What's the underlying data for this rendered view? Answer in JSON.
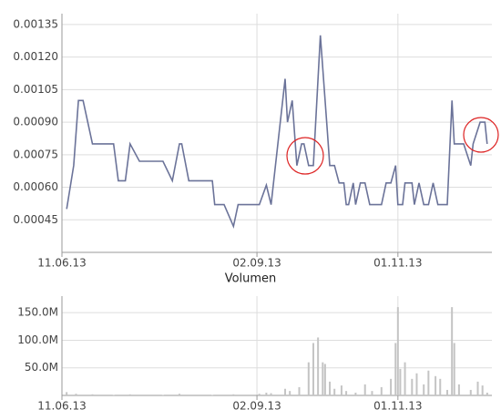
{
  "chart_data": [
    {
      "type": "line",
      "color": "#6b7399",
      "grid": true,
      "xlim": [
        "11.06.13",
        "11.12.13"
      ],
      "xticks": [
        "11.06.13",
        "02.09.13",
        "01.11.13"
      ],
      "ylim": [
        0.0003,
        0.0014
      ],
      "yticks": [
        0.00045,
        {
          "value": 0.0006,
          "label": "0.00060"
        },
        0.00075,
        {
          "value": 0.0009,
          "label": "0.00090"
        },
        0.00105,
        {
          "value": 0.0012,
          "label": "0.00120"
        },
        0.00135
      ],
      "x": [
        "13.06.13",
        "16.06.13",
        "18.06.13",
        "20.06.13",
        "24.06.13",
        "01.07.13",
        "03.07.13",
        "05.07.13",
        "08.07.13",
        "10.07.13",
        "14.07.13",
        "24.07.13",
        "28.07.13",
        "31.07.13",
        "01.08.13",
        "04.08.13",
        "14.08.13",
        "15.08.13",
        "19.08.13",
        "23.08.13",
        "25.08.13",
        "03.09.13",
        "06.09.13",
        "08.09.13",
        "14.09.13",
        "15.09.13",
        "17.09.13",
        "19.09.13",
        "21.09.13",
        "22.09.13",
        "24.09.13",
        "26.09.13",
        "29.09.13",
        "02.10.13",
        "03.10.13",
        "05.10.13",
        "07.10.13",
        "09.10.13",
        "10.10.13",
        "11.10.13",
        "13.10.13",
        "14.10.13",
        "16.10.13",
        "18.10.13",
        "20.10.13",
        "25.10.13",
        "27.10.13",
        "29.10.13",
        "31.10.13",
        "01.11.13",
        "03.11.13",
        "04.11.13",
        "07.11.13",
        "08.11.13",
        "10.11.13",
        "12.11.13",
        "14.11.13",
        "16.11.13",
        "18.11.13",
        "20.11.13",
        "22.11.13",
        "24.11.13",
        "25.11.13",
        "29.11.13",
        "02.12.13",
        "03.12.13",
        "06.12.13",
        "08.12.13",
        "09.12.13"
      ],
      "values": [
        0.0005,
        0.0007,
        0.001,
        0.001,
        0.0008,
        0.0008,
        0.0008,
        0.00063,
        0.00063,
        0.0008,
        0.00072,
        0.00072,
        0.00063,
        0.0008,
        0.0008,
        0.00063,
        0.00063,
        0.00052,
        0.00052,
        0.00042,
        0.00052,
        0.00052,
        0.00061,
        0.00052,
        0.0011,
        0.0009,
        0.001,
        0.0007,
        0.0008,
        0.0008,
        0.0007,
        0.0007,
        0.0013,
        0.00085,
        0.0007,
        0.0007,
        0.00062,
        0.00062,
        0.00052,
        0.00052,
        0.00062,
        0.00052,
        0.00062,
        0.00062,
        0.00052,
        0.00052,
        0.00062,
        0.00062,
        0.0007,
        0.00052,
        0.00052,
        0.00062,
        0.00062,
        0.00052,
        0.00062,
        0.00052,
        0.00052,
        0.00062,
        0.00052,
        0.00052,
        0.00052,
        0.001,
        0.0008,
        0.0008,
        0.0007,
        0.0008,
        0.0009,
        0.0009,
        0.0008
      ]
    },
    {
      "type": "bar",
      "title": "Volumen",
      "color": "#c4c4c4",
      "grid": true,
      "xlim": [
        "11.06.13",
        "11.12.13"
      ],
      "xticks": [
        "11.06.13",
        "02.09.13",
        "01.11.13"
      ],
      "ylim": [
        0,
        180000000
      ],
      "yticks": [
        {
          "value": 50000000,
          "label": "50.0M"
        },
        {
          "value": 100000000,
          "label": "100.0M"
        },
        {
          "value": 150000000,
          "label": "150.0M"
        }
      ],
      "x": [
        "13.06.13",
        "17.06.13",
        "24.06.13",
        "03.07.13",
        "10.07.13",
        "24.07.13",
        "31.07.13",
        "14.08.13",
        "23.08.13",
        "03.09.13",
        "06.09.13",
        "08.09.13",
        "14.09.13",
        "16.09.13",
        "20.09.13",
        "24.09.13",
        "26.09.13",
        "28.09.13",
        "30.09.13",
        "01.10.13",
        "03.10.13",
        "05.10.13",
        "08.10.13",
        "10.10.13",
        "14.10.13",
        "18.10.13",
        "21.10.13",
        "25.10.13",
        "29.10.13",
        "31.10.13",
        "01.11.13",
        "02.11.13",
        "04.11.13",
        "07.11.13",
        "09.11.13",
        "12.11.13",
        "14.11.13",
        "17.11.13",
        "19.11.13",
        "22.11.13",
        "24.11.13",
        "25.11.13",
        "27.11.13",
        "02.12.13",
        "05.12.13",
        "07.12.13",
        "09.12.13"
      ],
      "values": [
        6000000,
        3000000,
        2000000,
        1000000,
        2000000,
        1000000,
        3000000,
        1000000,
        2000000,
        3000000,
        5000000,
        4000000,
        12000000,
        8000000,
        15000000,
        60000000,
        95000000,
        105000000,
        60000000,
        57000000,
        25000000,
        12000000,
        18000000,
        8000000,
        5000000,
        20000000,
        8000000,
        15000000,
        30000000,
        95000000,
        160000000,
        48000000,
        60000000,
        30000000,
        40000000,
        20000000,
        45000000,
        35000000,
        30000000,
        10000000,
        160000000,
        95000000,
        20000000,
        10000000,
        25000000,
        18000000,
        5000000
      ]
    }
  ]
}
